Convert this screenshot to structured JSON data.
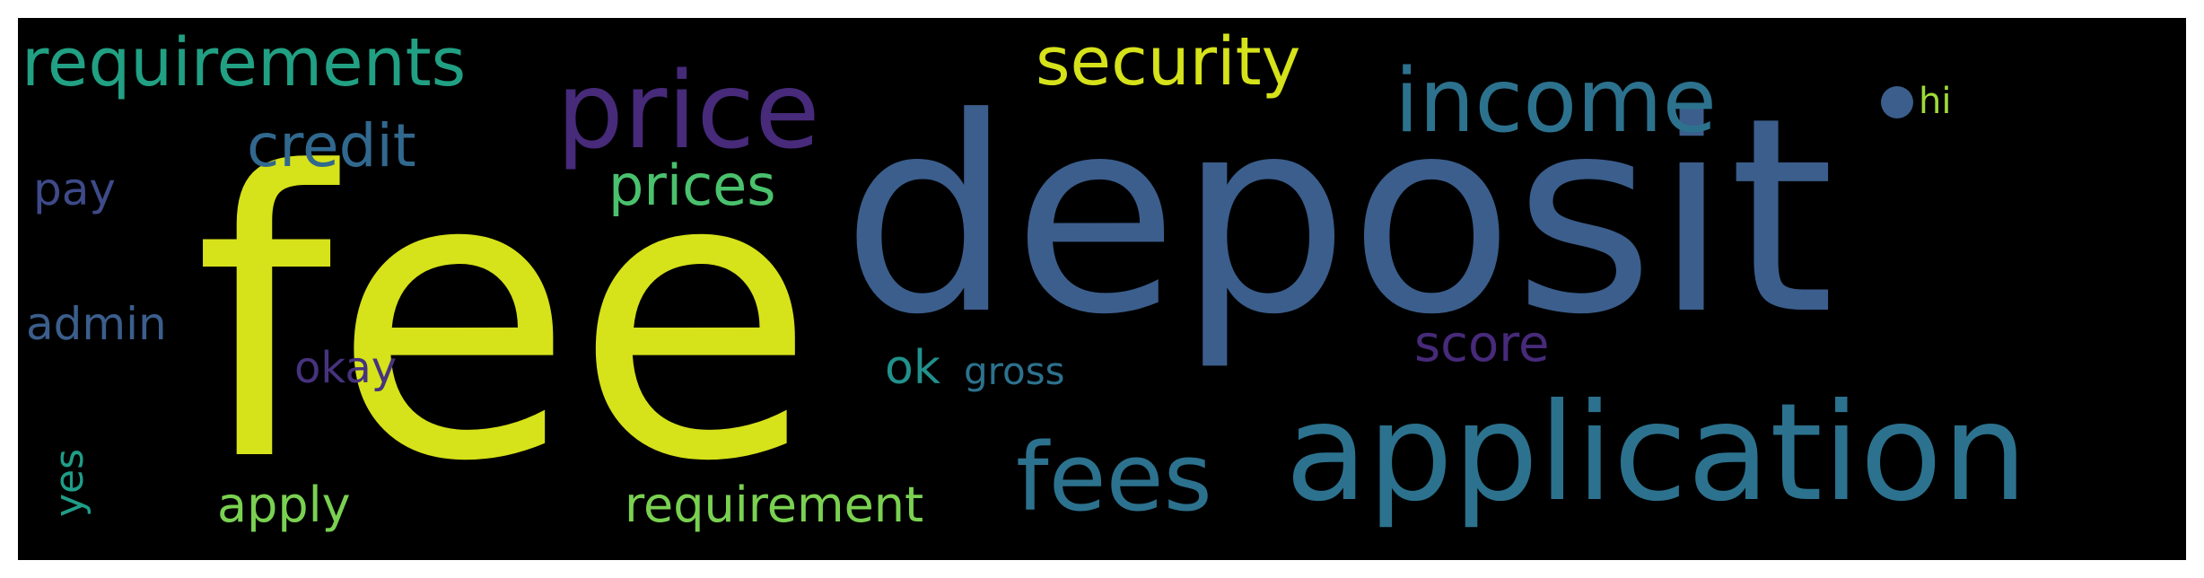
{
  "word_cloud": {
    "words": [
      {
        "text": "deposit",
        "color": "#3b5e8c"
      },
      {
        "text": "fee",
        "color": "#d6e21a"
      },
      {
        "text": "application",
        "color": "#2c728e"
      },
      {
        "text": "price",
        "color": "#472a7a"
      },
      {
        "text": "income",
        "color": "#2c728e"
      },
      {
        "text": "security",
        "color": "#d6e21a"
      },
      {
        "text": "requirements",
        "color": "#21a083"
      },
      {
        "text": "credit",
        "color": "#31688e"
      },
      {
        "text": "prices",
        "color": "#4ac16d"
      },
      {
        "text": "pay",
        "color": "#3e4a89"
      },
      {
        "text": "admin",
        "color": "#3b5e8c"
      },
      {
        "text": "okay",
        "color": "#46327e"
      },
      {
        "text": "ok",
        "color": "#21918c"
      },
      {
        "text": "gross",
        "color": "#2c728e"
      },
      {
        "text": "score",
        "color": "#472a7a"
      },
      {
        "text": "fees",
        "color": "#2c728e"
      },
      {
        "text": "yes",
        "color": "#1f9e89"
      },
      {
        "text": "apply",
        "color": "#7ad151"
      },
      {
        "text": "requirement",
        "color": "#7ad151"
      },
      {
        "text": "hi",
        "color": "#9fda3a"
      }
    ],
    "background_color": "#000000",
    "dot_color": "#3b5e8c"
  }
}
